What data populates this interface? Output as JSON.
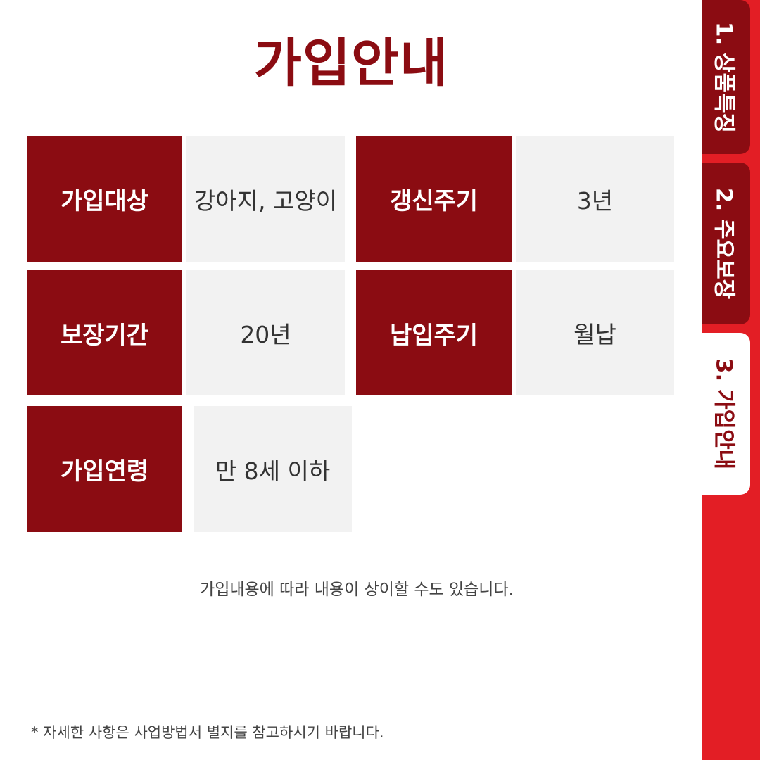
{
  "title": "가입안내",
  "table": {
    "rows": [
      {
        "label": "가입대상",
        "value": "강아지, 고양이"
      },
      {
        "label": "갱신주기",
        "value": "3년"
      },
      {
        "label": "보장기간",
        "value": "20년"
      },
      {
        "label": "납입주기",
        "value": "월납"
      },
      {
        "label": "가입연령",
        "value": "만 8세 이하"
      }
    ]
  },
  "note": "가입내용에 따라 내용이 상이할 수도 있습니다.",
  "footnote": "* 자세한 사항은 사업방법서 별지를 참고하시기 바랍니다.",
  "tabs": [
    {
      "label": "1. 상품특징",
      "active": false
    },
    {
      "label": "2. 주요보장",
      "active": false
    },
    {
      "label": "3. 가입안내",
      "active": true
    }
  ],
  "colors": {
    "accent_dark_red": "#8b0c12",
    "tab_strip_red": "#e31e25",
    "value_cell_gray": "#f2f2f2"
  }
}
